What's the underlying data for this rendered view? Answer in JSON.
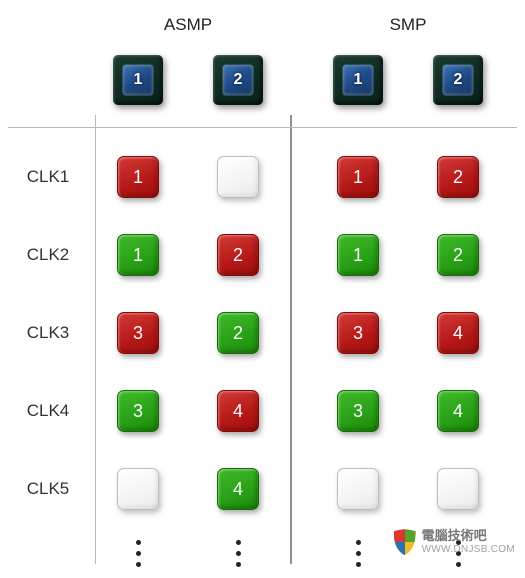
{
  "columns": {
    "left_title": "ASMP",
    "right_title": "SMP",
    "chips_left": [
      "1",
      "2"
    ],
    "chips_right": [
      "1",
      "2"
    ]
  },
  "rows": [
    {
      "label": "CLK1",
      "cells": [
        {
          "color": "red",
          "text": "1"
        },
        {
          "color": "white",
          "text": ""
        },
        {
          "color": "red",
          "text": "1"
        },
        {
          "color": "red",
          "text": "2"
        }
      ]
    },
    {
      "label": "CLK2",
      "cells": [
        {
          "color": "green",
          "text": "1"
        },
        {
          "color": "red",
          "text": "2"
        },
        {
          "color": "green",
          "text": "1"
        },
        {
          "color": "green",
          "text": "2"
        }
      ]
    },
    {
      "label": "CLK3",
      "cells": [
        {
          "color": "red",
          "text": "3"
        },
        {
          "color": "green",
          "text": "2"
        },
        {
          "color": "red",
          "text": "3"
        },
        {
          "color": "red",
          "text": "4"
        }
      ]
    },
    {
      "label": "CLK4",
      "cells": [
        {
          "color": "green",
          "text": "3"
        },
        {
          "color": "red",
          "text": "4"
        },
        {
          "color": "green",
          "text": "3"
        },
        {
          "color": "green",
          "text": "4"
        }
      ]
    },
    {
      "label": "CLK5",
      "cells": [
        {
          "color": "white",
          "text": ""
        },
        {
          "color": "green",
          "text": "4"
        },
        {
          "color": "white",
          "text": ""
        },
        {
          "color": "white",
          "text": ""
        }
      ]
    }
  ],
  "colors": {
    "red": "#b51817",
    "green": "#28a016",
    "white": "#ffffff",
    "chip": "#0e2a23",
    "chip_core": "#1f4a86"
  },
  "watermark": {
    "line1": "電腦技術吧",
    "line2": "WWW.DNJSB.COM"
  }
}
